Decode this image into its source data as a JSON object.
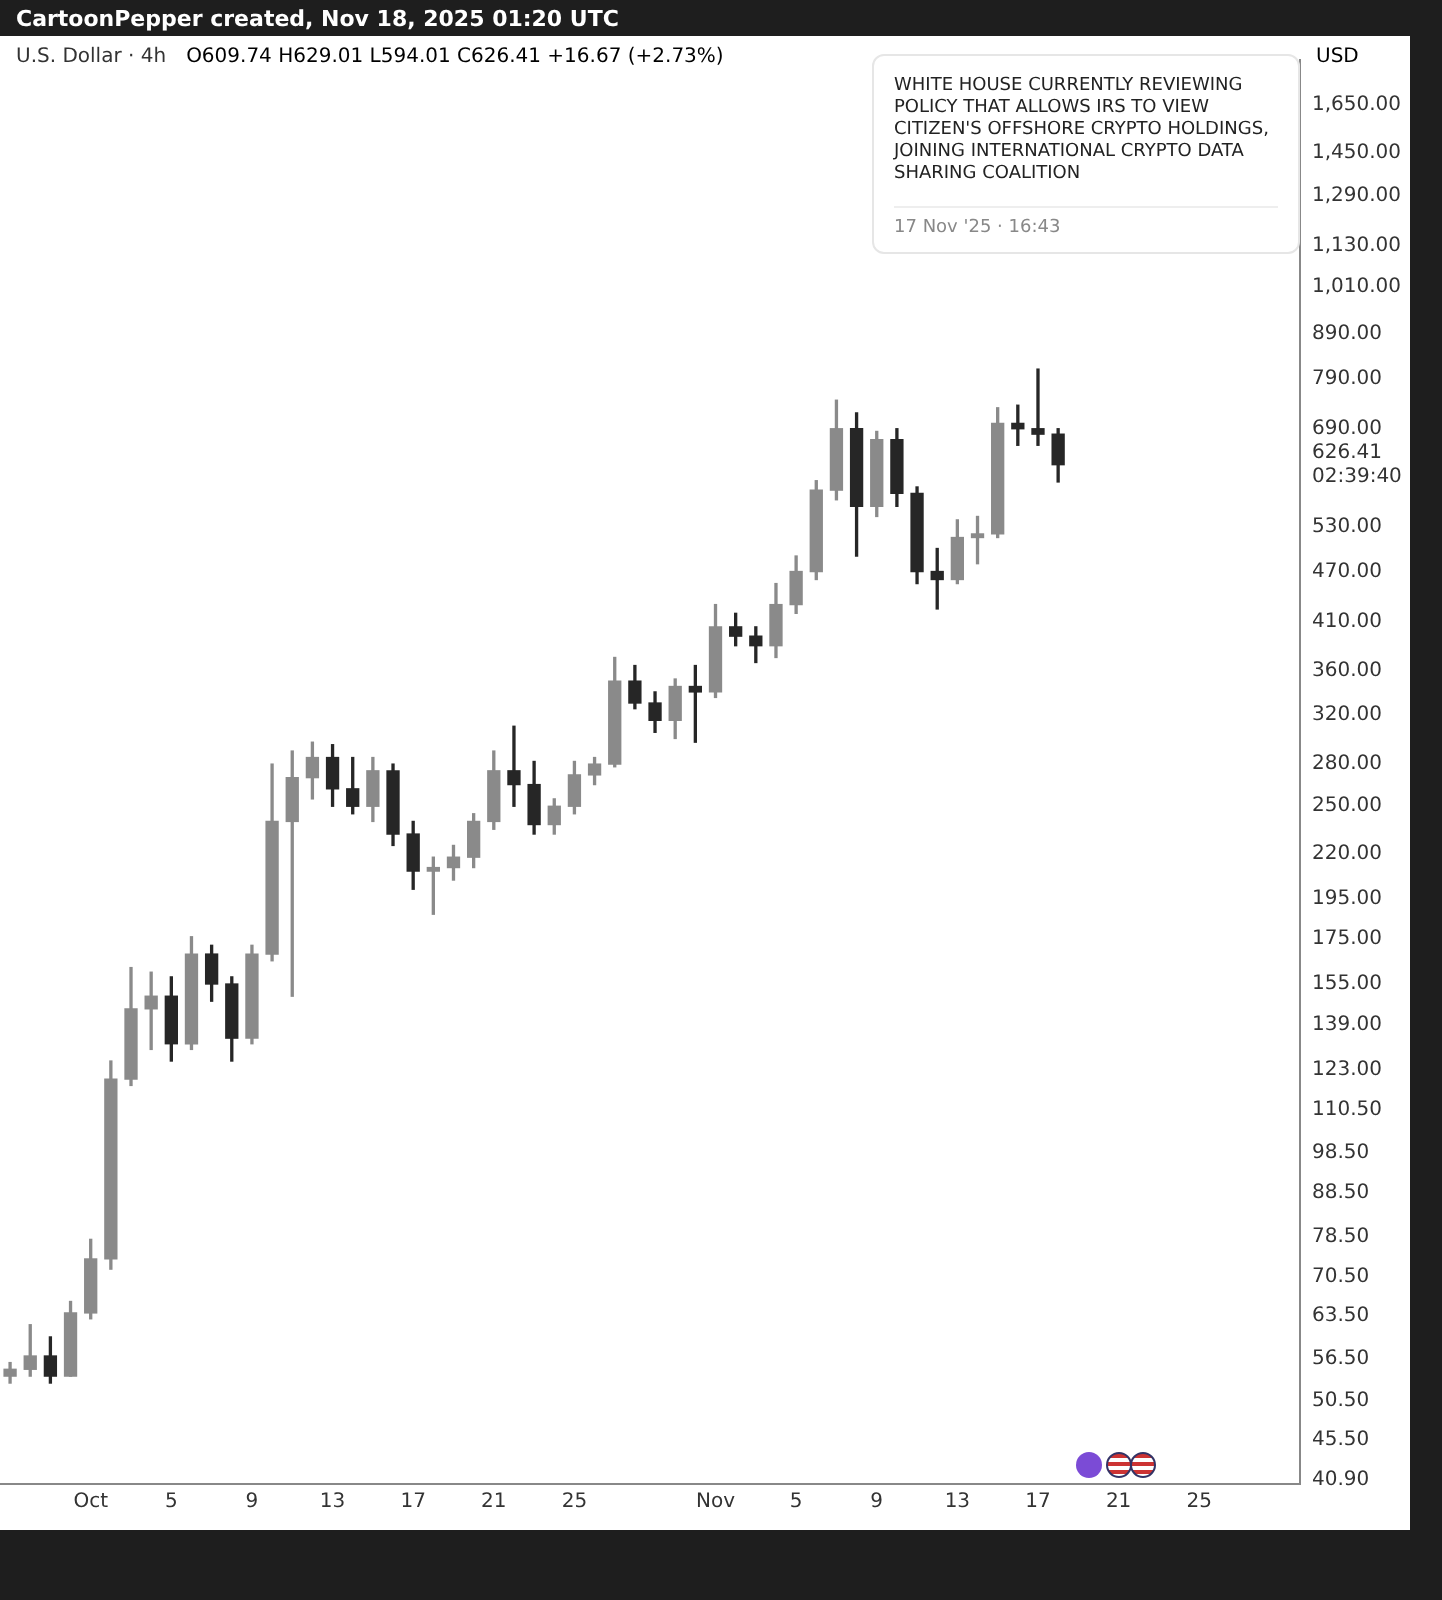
{
  "chart_data": {
    "type": "candlestick",
    "title": "U.S. Dollar · 4h",
    "subtitle": "CartoonPepper created, Nov 18, 2025 01:20 UTC",
    "ylabel": "USD",
    "colors": [
      "#8a8a8a",
      "#8a8a8a",
      "#262626",
      "#8a8a8a",
      "#8a8a8a",
      "#8a8a8a",
      "#8a8a8a",
      "#8a8a8a",
      "#262626",
      "#8a8a8a",
      "#262626",
      "#262626",
      "#8a8a8a",
      "#8a8a8a",
      "#8a8a8a",
      "#8a8a8a",
      "#262626",
      "#262626",
      "#8a8a8a",
      "#262626",
      "#262626",
      "#8a8a8a",
      "#8a8a8a",
      "#8a8a8a",
      "#8a8a8a",
      "#262626",
      "#262626",
      "#8a8a8a",
      "#8a8a8a",
      "#8a8a8a",
      "#8a8a8a",
      "#262626",
      "#262626",
      "#8a8a8a",
      "#262626",
      "#8a8a8a",
      "#262626",
      "#262626",
      "#8a8a8a",
      "#8a8a8a",
      "#8a8a8a",
      "#8a8a8a",
      "#262626",
      "#8a8a8a",
      "#262626",
      "#262626",
      "#262626",
      "#8a8a8a",
      "#8a8a8a",
      "#8a8a8a",
      "#262626",
      "#262626",
      "#262626"
    ],
    "log": true,
    "grid": false,
    "legend": false,
    "annotations": [
      "O609.74 H629.01 L594.01 C626.41 +16.67 (+2.73%)",
      "WHITE HOUSE CURRENTLY REVIEWING POLICY THAT ALLOWS IRS TO VIEW CITIZEN'S OFFSHORE CRYPTO HOLDINGS, JOINING INTERNATIONAL CRYPTO DATA SHARING COALITION",
      "17 Nov '25 · 16:43"
    ],
    "x": [
      "2025-09-27",
      "2025-09-28",
      "2025-09-29",
      "2025-09-30",
      "2025-10-01",
      "2025-10-02",
      "2025-10-03",
      "2025-10-04",
      "2025-10-05",
      "2025-10-06",
      "2025-10-07",
      "2025-10-08",
      "2025-10-09",
      "2025-10-10",
      "2025-10-11",
      "2025-10-12",
      "2025-10-13",
      "2025-10-14",
      "2025-10-15",
      "2025-10-16",
      "2025-10-17",
      "2025-10-18",
      "2025-10-19",
      "2025-10-20",
      "2025-10-21",
      "2025-10-22",
      "2025-10-23",
      "2025-10-24",
      "2025-10-25",
      "2025-10-26",
      "2025-10-27",
      "2025-10-28",
      "2025-10-29",
      "2025-10-30",
      "2025-10-31",
      "2025-11-01",
      "2025-11-02",
      "2025-11-03",
      "2025-11-04",
      "2025-11-05",
      "2025-11-06",
      "2025-11-07",
      "2025-11-08",
      "2025-11-09",
      "2025-11-10",
      "2025-11-11",
      "2025-11-12",
      "2025-11-13",
      "2025-11-14",
      "2025-11-15",
      "2025-11-16",
      "2025-11-17",
      "2025-11-18"
    ],
    "ohlc": [
      [
        54,
        56,
        53,
        55
      ],
      [
        55,
        62,
        54,
        57
      ],
      [
        57,
        60,
        53,
        54
      ],
      [
        54,
        66,
        54,
        64
      ],
      [
        64,
        78,
        63,
        74
      ],
      [
        74,
        126,
        72,
        120
      ],
      [
        120,
        162,
        118,
        145
      ],
      [
        145,
        160,
        130,
        150
      ],
      [
        150,
        158,
        126,
        132
      ],
      [
        132,
        176,
        130,
        168
      ],
      [
        168,
        172,
        148,
        155
      ],
      [
        155,
        158,
        126,
        134
      ],
      [
        134,
        172,
        132,
        168
      ],
      [
        168,
        280,
        165,
        240
      ],
      [
        240,
        290,
        150,
        270
      ],
      [
        270,
        297,
        255,
        285
      ],
      [
        285,
        295,
        250,
        262
      ],
      [
        262,
        285,
        245,
        250
      ],
      [
        250,
        285,
        240,
        275
      ],
      [
        275,
        280,
        225,
        232
      ],
      [
        232,
        240,
        200,
        210
      ],
      [
        210,
        218,
        187,
        212
      ],
      [
        212,
        225,
        205,
        218
      ],
      [
        218,
        245,
        212,
        240
      ],
      [
        240,
        290,
        235,
        275
      ],
      [
        275,
        310,
        250,
        265
      ],
      [
        265,
        282,
        232,
        238
      ],
      [
        238,
        255,
        232,
        250
      ],
      [
        250,
        282,
        245,
        272
      ],
      [
        272,
        285,
        265,
        280
      ],
      [
        280,
        373,
        278,
        350
      ],
      [
        350,
        365,
        325,
        330
      ],
      [
        330,
        340,
        305,
        315
      ],
      [
        315,
        352,
        300,
        345
      ],
      [
        345,
        365,
        297,
        340
      ],
      [
        340,
        430,
        335,
        405
      ],
      [
        405,
        420,
        385,
        395
      ],
      [
        395,
        405,
        368,
        385
      ],
      [
        385,
        455,
        373,
        430
      ],
      [
        430,
        490,
        420,
        470
      ],
      [
        470,
        600,
        460,
        585
      ],
      [
        585,
        745,
        570,
        690
      ],
      [
        690,
        720,
        490,
        560
      ],
      [
        560,
        685,
        545,
        670
      ],
      [
        670,
        690,
        560,
        580
      ],
      [
        580,
        590,
        455,
        470
      ],
      [
        470,
        500,
        425,
        460
      ],
      [
        460,
        540,
        455,
        515
      ],
      [
        515,
        545,
        480,
        520
      ],
      [
        520,
        730,
        515,
        700
      ],
      [
        700,
        735,
        660,
        690
      ],
      [
        690,
        810,
        660,
        680
      ],
      [
        680,
        690,
        598,
        626.41
      ]
    ],
    "xlim": [
      "2025-09-26T12:00",
      "2025-11-30T00:00"
    ],
    "xticks": [
      {
        "value": "2025-10-01",
        "label": "Oct"
      },
      {
        "value": "2025-10-05",
        "label": "5"
      },
      {
        "value": "2025-10-09",
        "label": "9"
      },
      {
        "value": "2025-10-13",
        "label": "13"
      },
      {
        "value": "2025-10-17",
        "label": "17"
      },
      {
        "value": "2025-10-21",
        "label": "21"
      },
      {
        "value": "2025-10-25",
        "label": "25"
      },
      {
        "value": "2025-11-01",
        "label": "Nov"
      },
      {
        "value": "2025-11-05",
        "label": "5"
      },
      {
        "value": "2025-11-09",
        "label": "9"
      },
      {
        "value": "2025-11-13",
        "label": "13"
      },
      {
        "value": "2025-11-17",
        "label": "17"
      },
      {
        "value": "2025-11-21",
        "label": "21"
      },
      {
        "value": "2025-11-25",
        "label": "25"
      }
    ],
    "ylim": [
      40.4,
      1860
    ],
    "yticks": [
      {
        "value": 40.9,
        "label": "40.90"
      },
      {
        "value": 45.5,
        "label": "45.50"
      },
      {
        "value": 50.5,
        "label": "50.50"
      },
      {
        "value": 56.5,
        "label": "56.50"
      },
      {
        "value": 63.5,
        "label": "63.50"
      },
      {
        "value": 70.5,
        "label": "70.50"
      },
      {
        "value": 78.5,
        "label": "78.50"
      },
      {
        "value": 88.5,
        "label": "88.50"
      },
      {
        "value": 98.5,
        "label": "98.50"
      },
      {
        "value": 110.5,
        "label": "110.50"
      },
      {
        "value": 123,
        "label": "123.00"
      },
      {
        "value": 139,
        "label": "139.00"
      },
      {
        "value": 155,
        "label": "155.00"
      },
      {
        "value": 175,
        "label": "175.00"
      },
      {
        "value": 195,
        "label": "195.00"
      },
      {
        "value": 220,
        "label": "220.00"
      },
      {
        "value": 250,
        "label": "250.00"
      },
      {
        "value": 280,
        "label": "280.00"
      },
      {
        "value": 320,
        "label": "320.00"
      },
      {
        "value": 360,
        "label": "360.00"
      },
      {
        "value": 410,
        "label": "410.00"
      },
      {
        "value": 470,
        "label": "470.00"
      },
      {
        "value": 530,
        "label": "530.00"
      },
      {
        "value": 626.41,
        "label": "626.41\n02:39:40"
      },
      {
        "value": 690,
        "label": "690.00"
      },
      {
        "value": 790,
        "label": "790.00"
      },
      {
        "value": 890,
        "label": "890.00"
      },
      {
        "value": 1010,
        "label": "1,010.00"
      },
      {
        "value": 1130,
        "label": "1,130.00"
      },
      {
        "value": 1290,
        "label": "1,290.00"
      },
      {
        "value": 1450,
        "label": "1,450.00"
      },
      {
        "value": 1650,
        "label": "1,650.00"
      }
    ]
  }
}
